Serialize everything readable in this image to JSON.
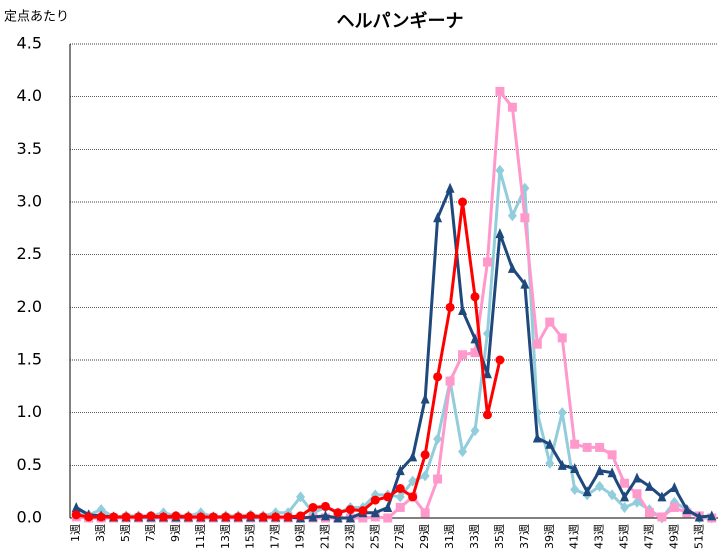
{
  "chart_data": {
    "type": "line",
    "title": "ヘルパンギーナ",
    "y_label": "定点あたり",
    "categories": [
      "1週",
      null,
      "3週",
      null,
      "5週",
      null,
      "7週",
      null,
      "9週",
      null,
      "11週",
      null,
      "13週",
      null,
      "15週",
      null,
      "17週",
      null,
      "19週",
      null,
      "21週",
      null,
      "23週",
      null,
      "25週",
      null,
      "27週",
      null,
      "29週",
      null,
      "31週",
      null,
      "33週",
      null,
      "35週",
      null,
      "37週",
      null,
      "39週",
      null,
      "41週",
      null,
      "43週",
      null,
      "45週",
      null,
      "47週",
      null,
      "49週",
      null,
      "51週",
      null
    ],
    "ylim": [
      0,
      4.5
    ],
    "yticks": [
      {
        "value": 0,
        "label": "0.0"
      },
      0.5,
      {
        "value": 1,
        "label": "1.0"
      },
      1.5,
      {
        "value": 2,
        "label": "2.0"
      },
      2.5,
      {
        "value": 3,
        "label": "3.0"
      },
      3.5,
      {
        "value": 4,
        "label": "4.0"
      },
      4.5
    ],
    "grid": true,
    "series": [
      {
        "color": "#92cddc",
        "marker": "diamond",
        "values": [
          0.05,
          0.03,
          0.08,
          0.01,
          0.02,
          0.02,
          0.02,
          0.05,
          0.02,
          0.02,
          0.05,
          0.01,
          0.02,
          0.02,
          0.03,
          0.02,
          0.05,
          0.05,
          0.2,
          0.05,
          0.1,
          0.05,
          0.1,
          0.1,
          0.22,
          0.22,
          0.2,
          0.35,
          0.4,
          0.75,
          1.3,
          0.63,
          0.83,
          1.75,
          3.3,
          2.87,
          3.13,
          1.0,
          0.52,
          1.0,
          0.27,
          0.22,
          0.3,
          0.22,
          0.1,
          0.15,
          0.08,
          0.0,
          0.15,
          0.08,
          0.0,
          0.0
        ]
      },
      {
        "color": "#ff99cc",
        "marker": "square",
        "values": [
          0.01,
          0.0,
          0.0,
          0.0,
          0.0,
          0.0,
          0.0,
          0.0,
          0.0,
          0.0,
          0.0,
          0.0,
          0.0,
          0.0,
          0.0,
          0.0,
          0.0,
          0.0,
          0.0,
          0.0,
          0.0,
          0.0,
          0.0,
          0.0,
          0.01,
          0.0,
          0.1,
          0.2,
          0.05,
          0.37,
          1.3,
          1.55,
          1.57,
          2.43,
          4.05,
          3.9,
          2.85,
          1.65,
          1.86,
          1.71,
          0.7,
          0.67,
          0.67,
          0.6,
          0.33,
          0.23,
          0.05,
          0.01,
          0.1,
          0.05,
          0.02,
          0.0
        ]
      },
      {
        "color": "#1f497d",
        "marker": "triangle",
        "values": [
          0.1,
          0.03,
          0.02,
          0.01,
          0.01,
          0.01,
          0.01,
          0.01,
          0.01,
          0.01,
          0.01,
          0.01,
          0.01,
          0.01,
          0.01,
          0.01,
          0.01,
          0.01,
          0.0,
          0.01,
          0.02,
          0.0,
          0.0,
          0.05,
          0.05,
          0.1,
          0.45,
          0.58,
          1.13,
          2.85,
          3.13,
          1.97,
          1.7,
          1.37,
          2.7,
          2.37,
          2.22,
          0.76,
          0.7,
          0.5,
          0.47,
          0.25,
          0.45,
          0.43,
          0.2,
          0.38,
          0.3,
          0.2,
          0.29,
          0.08,
          0.01,
          0.02
        ]
      },
      {
        "color": "#ff0000",
        "marker": "circle",
        "values": [
          0.03,
          0.01,
          0.01,
          0.01,
          0.01,
          0.01,
          0.02,
          0.01,
          0.02,
          0.01,
          0.01,
          0.01,
          0.01,
          0.01,
          0.02,
          0.01,
          0.01,
          0.01,
          0.02,
          0.1,
          0.11,
          0.05,
          0.08,
          0.07,
          0.17,
          0.2,
          0.28,
          0.2,
          0.6,
          1.34,
          2.0,
          3.0,
          2.1,
          0.98,
          1.5,
          null,
          null,
          null,
          null,
          null,
          null,
          null,
          null,
          null,
          null,
          null,
          null,
          null,
          null,
          null,
          null,
          null
        ]
      }
    ]
  }
}
